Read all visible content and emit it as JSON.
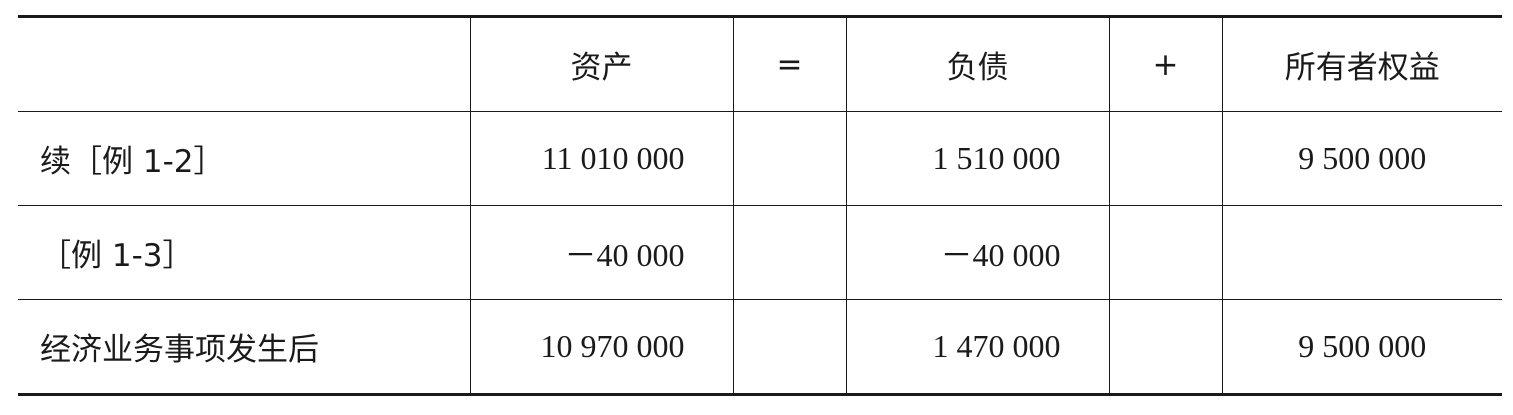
{
  "headers": [
    "",
    "资产",
    "=",
    "负债",
    "+",
    "所有者权益"
  ],
  "rows": [
    {
      "label": "续［例 1-2］",
      "assets": "11 010 000",
      "liabilities": "1 510 000",
      "equity": "9 500 000"
    },
    {
      "label": "［例 1-3］",
      "assets": "－40 000",
      "liabilities": "－40 000",
      "equity": ""
    },
    {
      "label": "经济业务事项发生后",
      "assets": "10 970 000",
      "liabilities": "1 470 000",
      "equity": "9 500 000"
    }
  ]
}
